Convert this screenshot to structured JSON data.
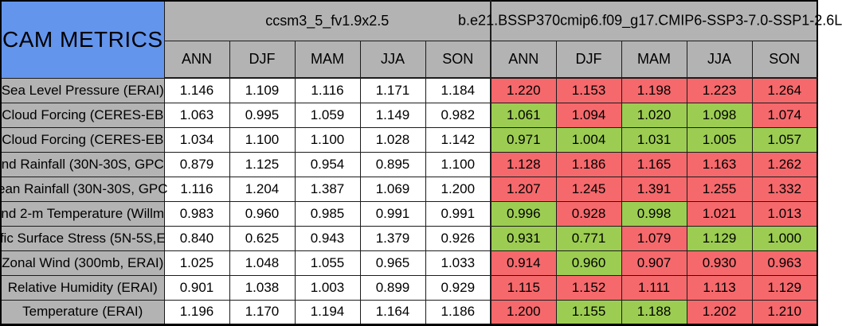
{
  "colors": {
    "title_blue": "#6495ED",
    "header_gray": "#B3B3B3",
    "red": "#F5696C",
    "green": "#9CCD52",
    "cell_white": "#FFFFFF"
  },
  "chart_data": {
    "type": "table",
    "title": "CAM METRICS",
    "column_groups": [
      "ccsm3_5_fv1.9x2.5",
      "b.e21.BSSP370cmip6.f09_g17.CMIP6-SSP3-7.0-SSP1-2.6L"
    ],
    "seasons": [
      "ANN",
      "DJF",
      "MAM",
      "JJA",
      "SON"
    ],
    "rows": [
      {
        "label": "Sea Level Pressure (ERAI)",
        "ccsm3_5_values": [
          "1.146",
          "1.109",
          "1.116",
          "1.171",
          "1.184"
        ],
        "comparison_values": [
          "1.220",
          "1.153",
          "1.198",
          "1.223",
          "1.264"
        ],
        "comparison_highlight": [
          "red",
          "red",
          "red",
          "red",
          "red"
        ]
      },
      {
        "label": "Cloud Forcing (CERES-EB",
        "ccsm3_5_values": [
          "1.063",
          "0.995",
          "1.059",
          "1.149",
          "0.982"
        ],
        "comparison_values": [
          "1.061",
          "1.094",
          "1.020",
          "1.098",
          "1.074"
        ],
        "comparison_highlight": [
          "green",
          "red",
          "green",
          "green",
          "red"
        ]
      },
      {
        "label": "Cloud Forcing (CERES-EB",
        "ccsm3_5_values": [
          "1.034",
          "1.100",
          "1.100",
          "1.028",
          "1.142"
        ],
        "comparison_values": [
          "0.971",
          "1.004",
          "1.031",
          "1.005",
          "1.057"
        ],
        "comparison_highlight": [
          "green",
          "green",
          "green",
          "green",
          "green"
        ]
      },
      {
        "label": "nd Rainfall (30N-30S, GPC",
        "ccsm3_5_values": [
          "0.879",
          "1.125",
          "0.954",
          "0.895",
          "1.100"
        ],
        "comparison_values": [
          "1.128",
          "1.186",
          "1.165",
          "1.163",
          "1.262"
        ],
        "comparison_highlight": [
          "red",
          "red",
          "red",
          "red",
          "red"
        ]
      },
      {
        "label": "ean Rainfall (30N-30S, GPC",
        "ccsm3_5_values": [
          "1.116",
          "1.204",
          "1.387",
          "1.069",
          "1.200"
        ],
        "comparison_values": [
          "1.207",
          "1.245",
          "1.391",
          "1.255",
          "1.332"
        ],
        "comparison_highlight": [
          "red",
          "red",
          "red",
          "red",
          "red"
        ]
      },
      {
        "label": "nd 2-m Temperature (Willm",
        "ccsm3_5_values": [
          "0.983",
          "0.960",
          "0.985",
          "0.991",
          "0.991"
        ],
        "comparison_values": [
          "0.996",
          "0.928",
          "0.998",
          "1.021",
          "1.013"
        ],
        "comparison_highlight": [
          "green",
          "red",
          "green",
          "red",
          "red"
        ]
      },
      {
        "label": "fic Surface Stress (5N-5S,E",
        "ccsm3_5_values": [
          "0.840",
          "0.625",
          "0.943",
          "1.379",
          "0.926"
        ],
        "comparison_values": [
          "0.931",
          "0.771",
          "1.079",
          "1.129",
          "1.000"
        ],
        "comparison_highlight": [
          "green",
          "green",
          "red",
          "green",
          "green"
        ]
      },
      {
        "label": "Zonal Wind (300mb, ERAI)",
        "ccsm3_5_values": [
          "1.025",
          "1.048",
          "1.055",
          "0.965",
          "1.033"
        ],
        "comparison_values": [
          "0.914",
          "0.960",
          "0.907",
          "0.930",
          "0.963"
        ],
        "comparison_highlight": [
          "red",
          "green",
          "red",
          "red",
          "red"
        ]
      },
      {
        "label": "Relative Humidity (ERAI)",
        "ccsm3_5_values": [
          "0.901",
          "1.038",
          "1.003",
          "0.899",
          "0.929"
        ],
        "comparison_values": [
          "1.115",
          "1.152",
          "1.111",
          "1.113",
          "1.129"
        ],
        "comparison_highlight": [
          "red",
          "red",
          "red",
          "red",
          "red"
        ]
      },
      {
        "label": "Temperature (ERAI)",
        "ccsm3_5_values": [
          "1.196",
          "1.170",
          "1.194",
          "1.164",
          "1.186"
        ],
        "comparison_values": [
          "1.200",
          "1.155",
          "1.188",
          "1.202",
          "1.210"
        ],
        "comparison_highlight": [
          "red",
          "green",
          "green",
          "red",
          "red"
        ]
      }
    ]
  }
}
